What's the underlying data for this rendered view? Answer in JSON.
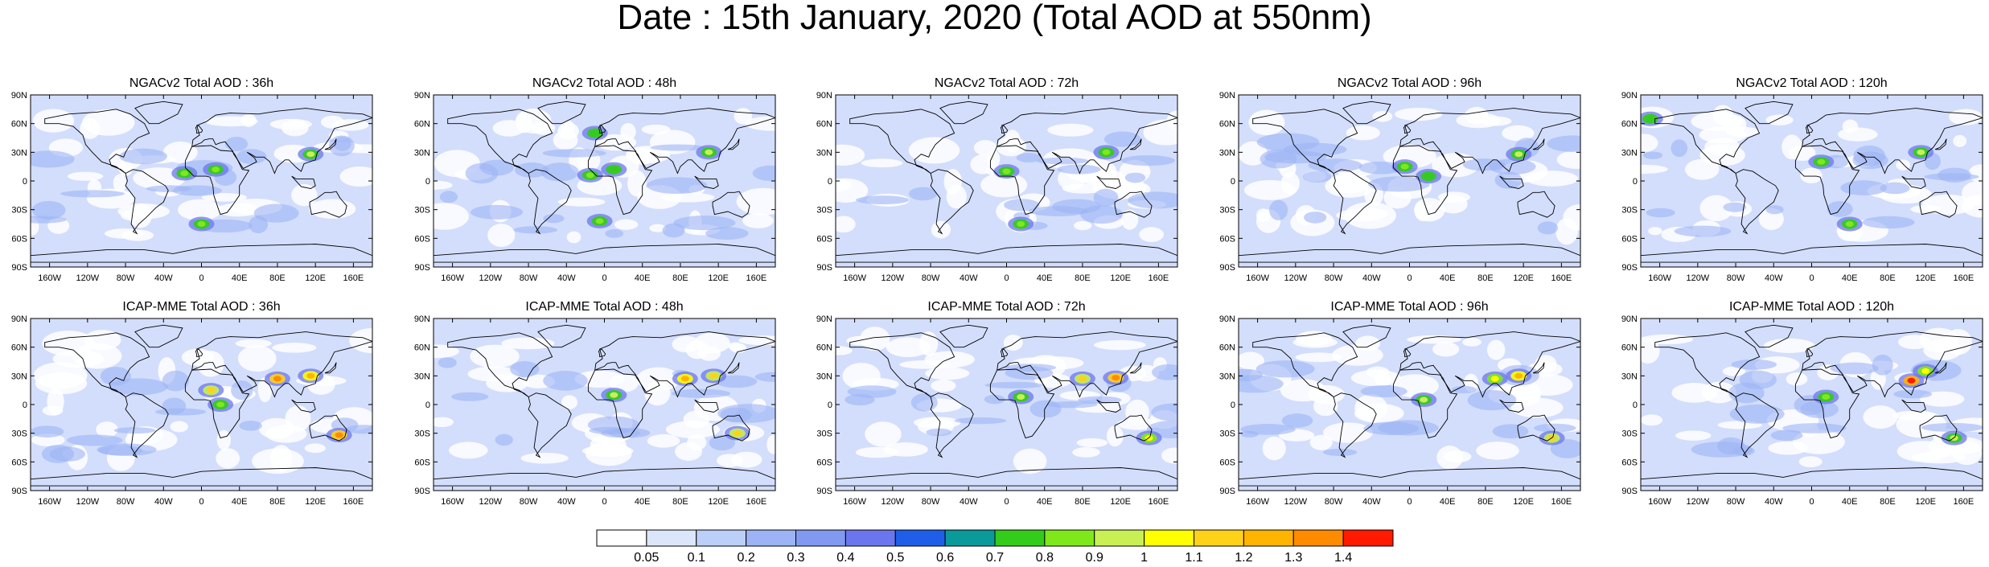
{
  "page": {
    "title": "Date : 15th January, 2020 (Total AOD at 550nm)"
  },
  "chart_data": [
    {
      "type": "heatmap",
      "row": "NGACv2",
      "title": "NGACv2 Total AOD : 36h",
      "xticks": [
        "160W",
        "120W",
        "80W",
        "40W",
        "0",
        "40E",
        "80E",
        "120E",
        "160E"
      ],
      "yticks": [
        "90N",
        "60N",
        "30N",
        "0",
        "30S",
        "60S",
        "90S"
      ],
      "xlim": [
        -180,
        180
      ],
      "ylim": [
        -90,
        90
      ],
      "hotspots": [
        {
          "lon": -18,
          "lat": 8,
          "aod": 0.8
        },
        {
          "lon": 15,
          "lat": 12,
          "aod": 0.8
        },
        {
          "lon": 115,
          "lat": 28,
          "aod": 0.9
        },
        {
          "lon": 0,
          "lat": -45,
          "aod": 0.8
        }
      ]
    },
    {
      "type": "heatmap",
      "row": "NGACv2",
      "title": "NGACv2 Total AOD : 48h",
      "xticks": [
        "160W",
        "120W",
        "80W",
        "40W",
        "0",
        "40E",
        "80E",
        "120E",
        "160E"
      ],
      "yticks": [
        "90N",
        "60N",
        "30N",
        "0",
        "30S",
        "60S",
        "90S"
      ],
      "xlim": [
        -180,
        180
      ],
      "ylim": [
        -90,
        90
      ],
      "hotspots": [
        {
          "lon": -15,
          "lat": 6,
          "aod": 0.8
        },
        {
          "lon": 10,
          "lat": 12,
          "aod": 0.7
        },
        {
          "lon": 110,
          "lat": 30,
          "aod": 0.9
        },
        {
          "lon": -10,
          "lat": 50,
          "aod": 0.7
        },
        {
          "lon": -5,
          "lat": -42,
          "aod": 0.8
        }
      ]
    },
    {
      "type": "heatmap",
      "row": "NGACv2",
      "title": "NGACv2 Total AOD : 72h",
      "xticks": [
        "160W",
        "120W",
        "80W",
        "40W",
        "0",
        "40E",
        "80E",
        "120E",
        "160E"
      ],
      "yticks": [
        "90N",
        "60N",
        "30N",
        "0",
        "30S",
        "60S",
        "90S"
      ],
      "xlim": [
        -180,
        180
      ],
      "ylim": [
        -90,
        90
      ],
      "hotspots": [
        {
          "lon": 0,
          "lat": 10,
          "aod": 0.8
        },
        {
          "lon": 105,
          "lat": 30,
          "aod": 0.8
        },
        {
          "lon": 15,
          "lat": -45,
          "aod": 0.8
        }
      ]
    },
    {
      "type": "heatmap",
      "row": "NGACv2",
      "title": "NGACv2 Total AOD : 96h",
      "xticks": [
        "160W",
        "120W",
        "80W",
        "40W",
        "0",
        "40E",
        "80E",
        "120E",
        "160E"
      ],
      "yticks": [
        "90N",
        "60N",
        "30N",
        "0",
        "30S",
        "60S",
        "90S"
      ],
      "xlim": [
        -180,
        180
      ],
      "ylim": [
        -90,
        90
      ],
      "hotspots": [
        {
          "lon": -5,
          "lat": 15,
          "aod": 0.8
        },
        {
          "lon": 115,
          "lat": 28,
          "aod": 0.9
        },
        {
          "lon": 20,
          "lat": 5,
          "aod": 0.7
        }
      ]
    },
    {
      "type": "heatmap",
      "row": "NGACv2",
      "title": "NGACv2 Total AOD : 120h",
      "xticks": [
        "160W",
        "120W",
        "80W",
        "40W",
        "0",
        "40E",
        "80E",
        "120E",
        "160E"
      ],
      "yticks": [
        "90N",
        "60N",
        "30N",
        "0",
        "30S",
        "60S",
        "90S"
      ],
      "xlim": [
        -180,
        180
      ],
      "ylim": [
        -90,
        90
      ],
      "hotspots": [
        {
          "lon": 10,
          "lat": 20,
          "aod": 0.8
        },
        {
          "lon": 115,
          "lat": 30,
          "aod": 0.9
        },
        {
          "lon": 40,
          "lat": -45,
          "aod": 0.8
        },
        {
          "lon": -170,
          "lat": 65,
          "aod": 0.7
        }
      ]
    },
    {
      "type": "heatmap",
      "row": "ICAP-MME",
      "title": "ICAP-MME Total AOD : 36h",
      "xticks": [
        "160W",
        "120W",
        "80W",
        "40W",
        "0",
        "40E",
        "80E",
        "120E",
        "160E"
      ],
      "yticks": [
        "90N",
        "60N",
        "30N",
        "0",
        "30S",
        "60S",
        "90S"
      ],
      "xlim": [
        -180,
        180
      ],
      "ylim": [
        -90,
        90
      ],
      "hotspots": [
        {
          "lon": 10,
          "lat": 15,
          "aod": 1.1
        },
        {
          "lon": 80,
          "lat": 27,
          "aod": 1.3
        },
        {
          "lon": 115,
          "lat": 30,
          "aod": 1.2
        },
        {
          "lon": 145,
          "lat": -32,
          "aod": 1.3
        },
        {
          "lon": 20,
          "lat": 0,
          "aod": 0.8
        }
      ]
    },
    {
      "type": "heatmap",
      "row": "ICAP-MME",
      "title": "ICAP-MME Total AOD : 48h",
      "xticks": [
        "160W",
        "120W",
        "80W",
        "40W",
        "0",
        "40E",
        "80E",
        "120E",
        "160E"
      ],
      "yticks": [
        "90N",
        "60N",
        "30N",
        "0",
        "30S",
        "60S",
        "90S"
      ],
      "xlim": [
        -180,
        180
      ],
      "ylim": [
        -90,
        90
      ],
      "hotspots": [
        {
          "lon": 10,
          "lat": 10,
          "aod": 0.9
        },
        {
          "lon": 85,
          "lat": 27,
          "aod": 1.2
        },
        {
          "lon": 115,
          "lat": 30,
          "aod": 1.1
        },
        {
          "lon": 140,
          "lat": -30,
          "aod": 1.1
        }
      ]
    },
    {
      "type": "heatmap",
      "row": "ICAP-MME",
      "title": "ICAP-MME Total AOD : 72h",
      "xticks": [
        "160W",
        "120W",
        "80W",
        "40W",
        "0",
        "40E",
        "80E",
        "120E",
        "160E"
      ],
      "yticks": [
        "90N",
        "60N",
        "30N",
        "0",
        "30S",
        "60S",
        "90S"
      ],
      "xlim": [
        -180,
        180
      ],
      "ylim": [
        -90,
        90
      ],
      "hotspots": [
        {
          "lon": 15,
          "lat": 8,
          "aod": 0.9
        },
        {
          "lon": 80,
          "lat": 27,
          "aod": 1.1
        },
        {
          "lon": 115,
          "lat": 28,
          "aod": 1.3
        },
        {
          "lon": 150,
          "lat": -35,
          "aod": 1.0
        }
      ]
    },
    {
      "type": "heatmap",
      "row": "ICAP-MME",
      "title": "ICAP-MME Total AOD : 96h",
      "xticks": [
        "160W",
        "120W",
        "80W",
        "40W",
        "0",
        "40E",
        "80E",
        "120E",
        "160E"
      ],
      "yticks": [
        "90N",
        "60N",
        "30N",
        "0",
        "30S",
        "60S",
        "90S"
      ],
      "xlim": [
        -180,
        180
      ],
      "ylim": [
        -90,
        90
      ],
      "hotspots": [
        {
          "lon": 15,
          "lat": 5,
          "aod": 0.9
        },
        {
          "lon": 90,
          "lat": 27,
          "aod": 1.0
        },
        {
          "lon": 115,
          "lat": 30,
          "aod": 1.2
        },
        {
          "lon": 150,
          "lat": -35,
          "aod": 1.1
        }
      ]
    },
    {
      "type": "heatmap",
      "row": "ICAP-MME",
      "title": "ICAP-MME Total AOD : 120h",
      "xticks": [
        "160W",
        "120W",
        "80W",
        "40W",
        "0",
        "40E",
        "80E",
        "120E",
        "160E"
      ],
      "yticks": [
        "90N",
        "60N",
        "30N",
        "0",
        "30S",
        "60S",
        "90S"
      ],
      "xlim": [
        -180,
        180
      ],
      "ylim": [
        -90,
        90
      ],
      "hotspots": [
        {
          "lon": 15,
          "lat": 8,
          "aod": 0.8
        },
        {
          "lon": 105,
          "lat": 25,
          "aod": 1.4
        },
        {
          "lon": 120,
          "lat": 35,
          "aod": 1.0
        },
        {
          "lon": 150,
          "lat": -35,
          "aod": 0.9
        }
      ]
    }
  ],
  "colorbar": {
    "labels": [
      "0.05",
      "0.1",
      "0.2",
      "0.3",
      "0.4",
      "0.5",
      "0.6",
      "0.7",
      "0.8",
      "0.9",
      "1",
      "1.1",
      "1.2",
      "1.3",
      "1.4"
    ],
    "colors": [
      "#ffffff",
      "#dce6fb",
      "#bccff8",
      "#9cb4f5",
      "#8199f1",
      "#6b76ee",
      "#1e5ee8",
      "#0a9a9a",
      "#33cc1a",
      "#7fe81a",
      "#c8f055",
      "#ffff00",
      "#ffd21a",
      "#ffb400",
      "#ff8c00",
      "#ff1a00"
    ]
  },
  "map_style": {
    "background": "#d3defc",
    "clean_patch": "#ffffff",
    "land_outline": "#000000"
  }
}
